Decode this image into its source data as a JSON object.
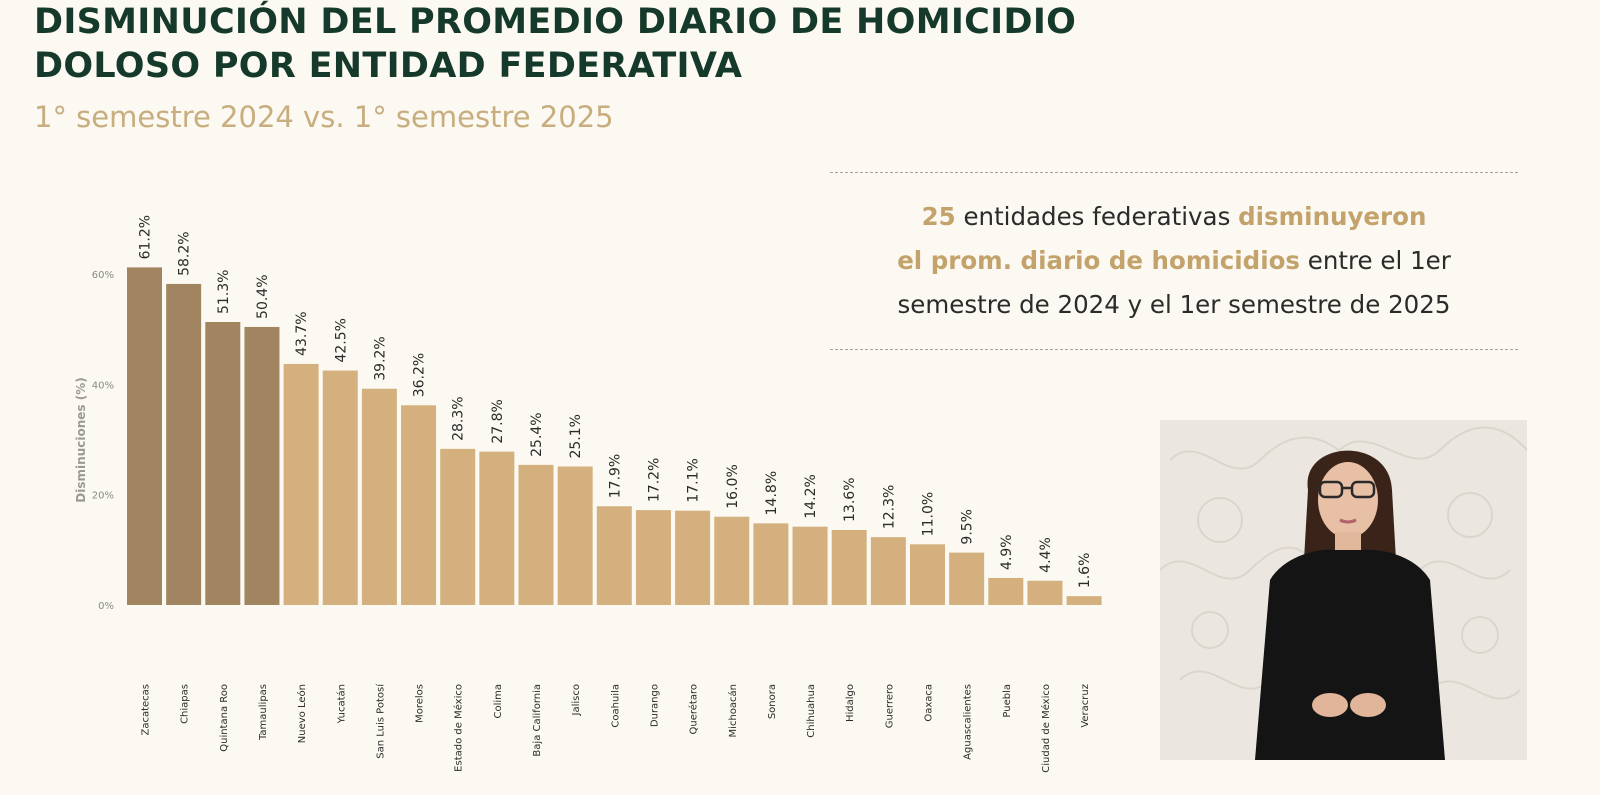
{
  "header": {
    "title_line1": "DISMINUCIÓN DEL PROMEDIO DIARIO DE HOMICIDIO",
    "title_line2": "DOLOSO POR ENTIDAD FEDERATIVA",
    "subtitle": "1° semestre 2024 vs. 1° semestre 2025"
  },
  "info_box": {
    "count": "25",
    "text1": " entidades federativas ",
    "highlight1": "disminuyeron",
    "highlight2": "el prom. diario de homicidios",
    "text2": " entre el 1er",
    "text3": "semestre de 2024 y el 1er semestre de 2025"
  },
  "chart_data": {
    "type": "bar",
    "ylabel": "Disminuciones (%)",
    "ylim": [
      0,
      60
    ],
    "yticks": [
      "0%",
      "20%",
      "40%",
      "60%"
    ],
    "grid": false,
    "categories": [
      "Zacatecas",
      "Chiapas",
      "Quintana Roo",
      "Tamaulipas",
      "Nuevo León",
      "Yucatán",
      "San Luis Potosí",
      "Morelos",
      "Estado de México",
      "Colima",
      "Baja California",
      "Jalisco",
      "Coahuila",
      "Durango",
      "Querétaro",
      "Michoacán",
      "Sonora",
      "Chihuahua",
      "Hidalgo",
      "Guerrero",
      "Oaxaca",
      "Aguascalientes",
      "Puebla",
      "Ciudad de México",
      "Veracruz"
    ],
    "values": [
      61.2,
      58.2,
      51.3,
      50.4,
      43.7,
      42.5,
      39.2,
      36.2,
      28.3,
      27.8,
      25.4,
      25.1,
      17.9,
      17.2,
      17.1,
      16.0,
      14.8,
      14.2,
      13.6,
      12.3,
      11.0,
      9.5,
      4.9,
      4.4,
      1.6
    ],
    "labels": [
      "61.2%",
      "58.2%",
      "51.3%",
      "50.4%",
      "43.7%",
      "42.5%",
      "39.2%",
      "36.2%",
      "28.3%",
      "27.8%",
      "25.4%",
      "25.1%",
      "17.9%",
      "17.2%",
      "17.1%",
      "16.0%",
      "14.8%",
      "14.2%",
      "13.6%",
      "12.3%",
      "11.0%",
      "9.5%",
      "4.9%",
      "4.4%",
      "1.6%"
    ],
    "colors": {
      "top4": "#a08560",
      "rest": "#d4b07e"
    }
  },
  "colors": {
    "title": "#15392a",
    "subtitle": "#c8ad7f",
    "accent": "#c3a26b",
    "background": "#fbf9f1"
  }
}
